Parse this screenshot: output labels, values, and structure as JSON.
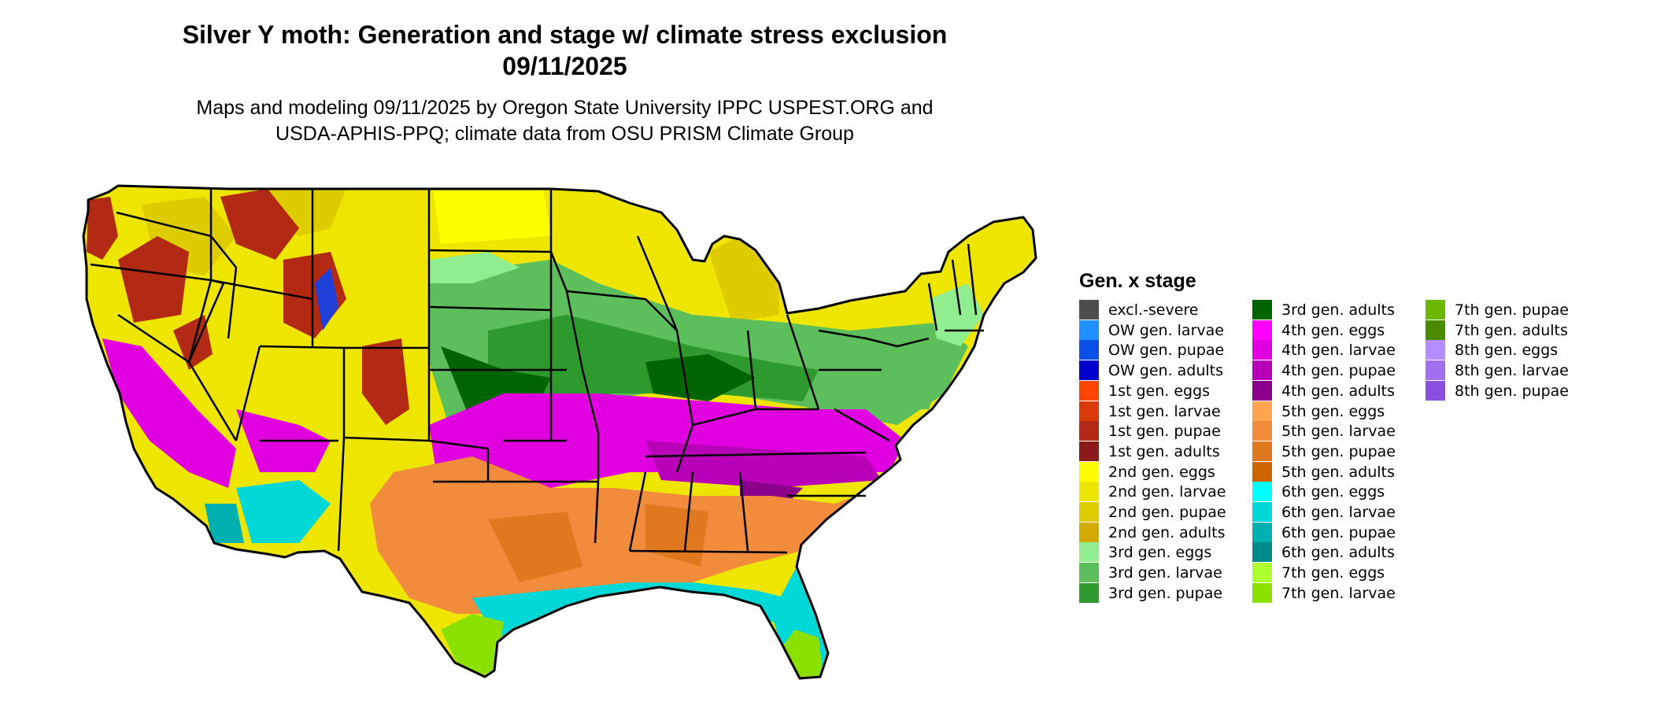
{
  "title_line1": "Silver Y moth: Generation and stage w/ climate stress exclusion",
  "title_line2": "09/11/2025",
  "subtitle_line1": "Maps and modeling 09/11/2025 by Oregon State University IPPC USPEST.ORG and",
  "subtitle_line2": "USDA-APHIS-PPQ; climate data from OSU PRISM Climate Group",
  "legend": {
    "title": "Gen. x stage",
    "items": [
      {
        "label": "excl.-severe",
        "color": "#4d4d4d"
      },
      {
        "label": "OW gen. larvae",
        "color": "#1e90ff"
      },
      {
        "label": "OW gen. pupae",
        "color": "#0a4fe6"
      },
      {
        "label": "OW gen. adults",
        "color": "#0000cd"
      },
      {
        "label": "1st gen. eggs",
        "color": "#ff4500"
      },
      {
        "label": "1st gen. larvae",
        "color": "#d83a0a"
      },
      {
        "label": "1st gen. pupae",
        "color": "#b22a14"
      },
      {
        "label": "1st gen. adults",
        "color": "#8b1a1a"
      },
      {
        "label": "2nd gen. eggs",
        "color": "#ffff00"
      },
      {
        "label": "2nd gen. larvae",
        "color": "#eee600"
      },
      {
        "label": "2nd gen. pupae",
        "color": "#ddcc00"
      },
      {
        "label": "2nd gen. adults",
        "color": "#d4aa00"
      },
      {
        "label": "3rd gen. eggs",
        "color": "#90ee90"
      },
      {
        "label": "3rd gen. larvae",
        "color": "#5cbf5c"
      },
      {
        "label": "3rd gen. pupae",
        "color": "#2e9a2e"
      },
      {
        "label": "3rd gen. adults",
        "color": "#006400"
      },
      {
        "label": "4th gen. eggs",
        "color": "#ff00ff"
      },
      {
        "label": "4th gen. larvae",
        "color": "#e000e0"
      },
      {
        "label": "4th gen. pupae",
        "color": "#b800b8"
      },
      {
        "label": "4th gen. adults",
        "color": "#8b008b"
      },
      {
        "label": "5th gen. eggs",
        "color": "#ffa54f"
      },
      {
        "label": "5th gen. larvae",
        "color": "#f08c3c"
      },
      {
        "label": "5th gen. pupae",
        "color": "#e07820"
      },
      {
        "label": "5th gen. adults",
        "color": "#cd6600"
      },
      {
        "label": "6th gen. eggs",
        "color": "#00ffff"
      },
      {
        "label": "6th gen. larvae",
        "color": "#00d8d8"
      },
      {
        "label": "6th gen. pupae",
        "color": "#00b0b0"
      },
      {
        "label": "6th gen. adults",
        "color": "#008b8b"
      },
      {
        "label": "7th gen. eggs",
        "color": "#adff2f"
      },
      {
        "label": "7th gen. larvae",
        "color": "#8ce000"
      },
      {
        "label": "7th gen. pupae",
        "color": "#6cb800"
      },
      {
        "label": "7th gen. adults",
        "color": "#4a8b00"
      },
      {
        "label": "8th gen. eggs",
        "color": "#b48cff"
      },
      {
        "label": "8th gen. larvae",
        "color": "#a070f0"
      },
      {
        "label": "8th gen. pupae",
        "color": "#8a4ee0"
      }
    ]
  }
}
